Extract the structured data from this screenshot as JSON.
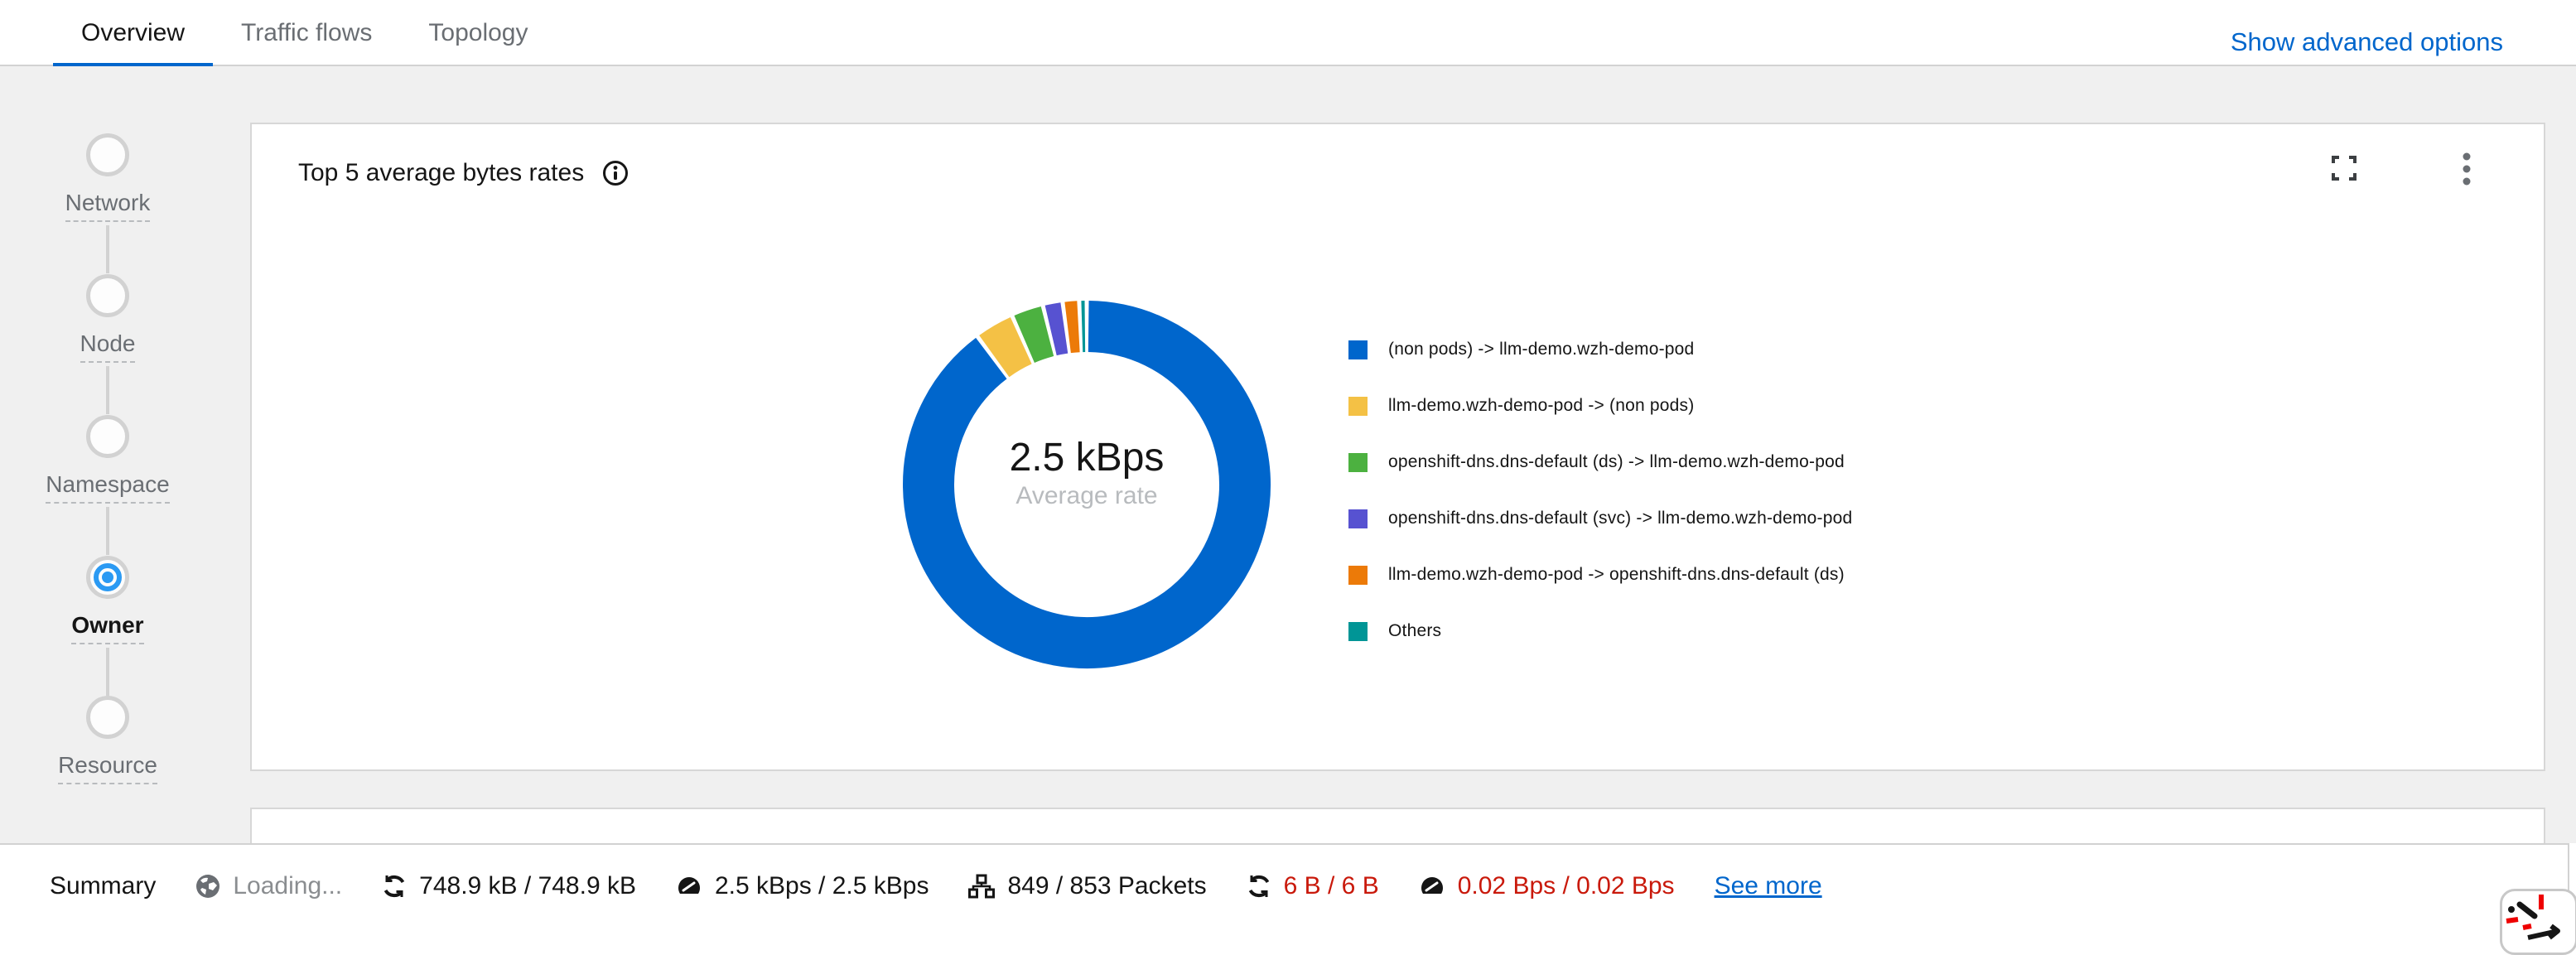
{
  "tabs": {
    "items": [
      {
        "label": "Overview",
        "active": true
      },
      {
        "label": "Traffic flows",
        "active": false
      },
      {
        "label": "Topology",
        "active": false
      }
    ],
    "advanced_link": "Show advanced options"
  },
  "scope_stepper": {
    "items": [
      {
        "label": "Network",
        "selected": false
      },
      {
        "label": "Node",
        "selected": false
      },
      {
        "label": "Namespace",
        "selected": false
      },
      {
        "label": "Owner",
        "selected": true
      },
      {
        "label": "Resource",
        "selected": false
      }
    ]
  },
  "panel": {
    "title": "Top 5 average bytes rates",
    "icons": [
      "info-circle-icon",
      "expand-icon",
      "kebab-menu-icon"
    ]
  },
  "chart_data": {
    "type": "pie",
    "variant": "donut",
    "title": "Top 5 average bytes rates",
    "center": {
      "value": "2.5 kBps",
      "label": "Average rate"
    },
    "legend_position": "right",
    "slices": [
      {
        "label": "(non pods) -> llm-demo.wzh-demo-pod",
        "color": "#0066CC",
        "percent": 91.5
      },
      {
        "label": "llm-demo.wzh-demo-pod -> (non pods)",
        "color": "#F4C145",
        "percent": 3.2
      },
      {
        "label": "openshift-dns.dns-default (ds) -> llm-demo.wzh-demo-pod",
        "color": "#4CB140",
        "percent": 2.5
      },
      {
        "label": "openshift-dns.dns-default (svc) -> llm-demo.wzh-demo-pod",
        "color": "#5752D1",
        "percent": 1.4
      },
      {
        "label": "llm-demo.wzh-demo-pod -> openshift-dns.dns-default (ds)",
        "color": "#EC7A08",
        "percent": 1.1
      },
      {
        "label": "Others",
        "color": "#009596",
        "percent": 0.3
      }
    ]
  },
  "summary_bar": {
    "title": "Summary",
    "items": [
      {
        "icon": "globe-icon",
        "text": "Loading...",
        "state": "muted"
      },
      {
        "icon": "sync-icon",
        "text": "748.9 kB / 748.9 kB",
        "state": "normal"
      },
      {
        "icon": "tachometer-icon",
        "text": "2.5 kBps / 2.5 kBps",
        "state": "normal"
      },
      {
        "icon": "sitemap-icon",
        "text": "849 / 853 Packets",
        "state": "normal"
      },
      {
        "icon": "sync-icon",
        "text": "6 B / 6 B",
        "state": "danger"
      },
      {
        "icon": "tachometer-icon",
        "text": "0.02 Bps / 0.02 Bps",
        "state": "danger"
      }
    ],
    "see_more": "See more"
  },
  "colors": {
    "accent": "#0066CC",
    "danger": "#C9190B",
    "background": "#F0F0F0",
    "border": "#D2D2D2",
    "selected_step": "#2B9AF3"
  }
}
